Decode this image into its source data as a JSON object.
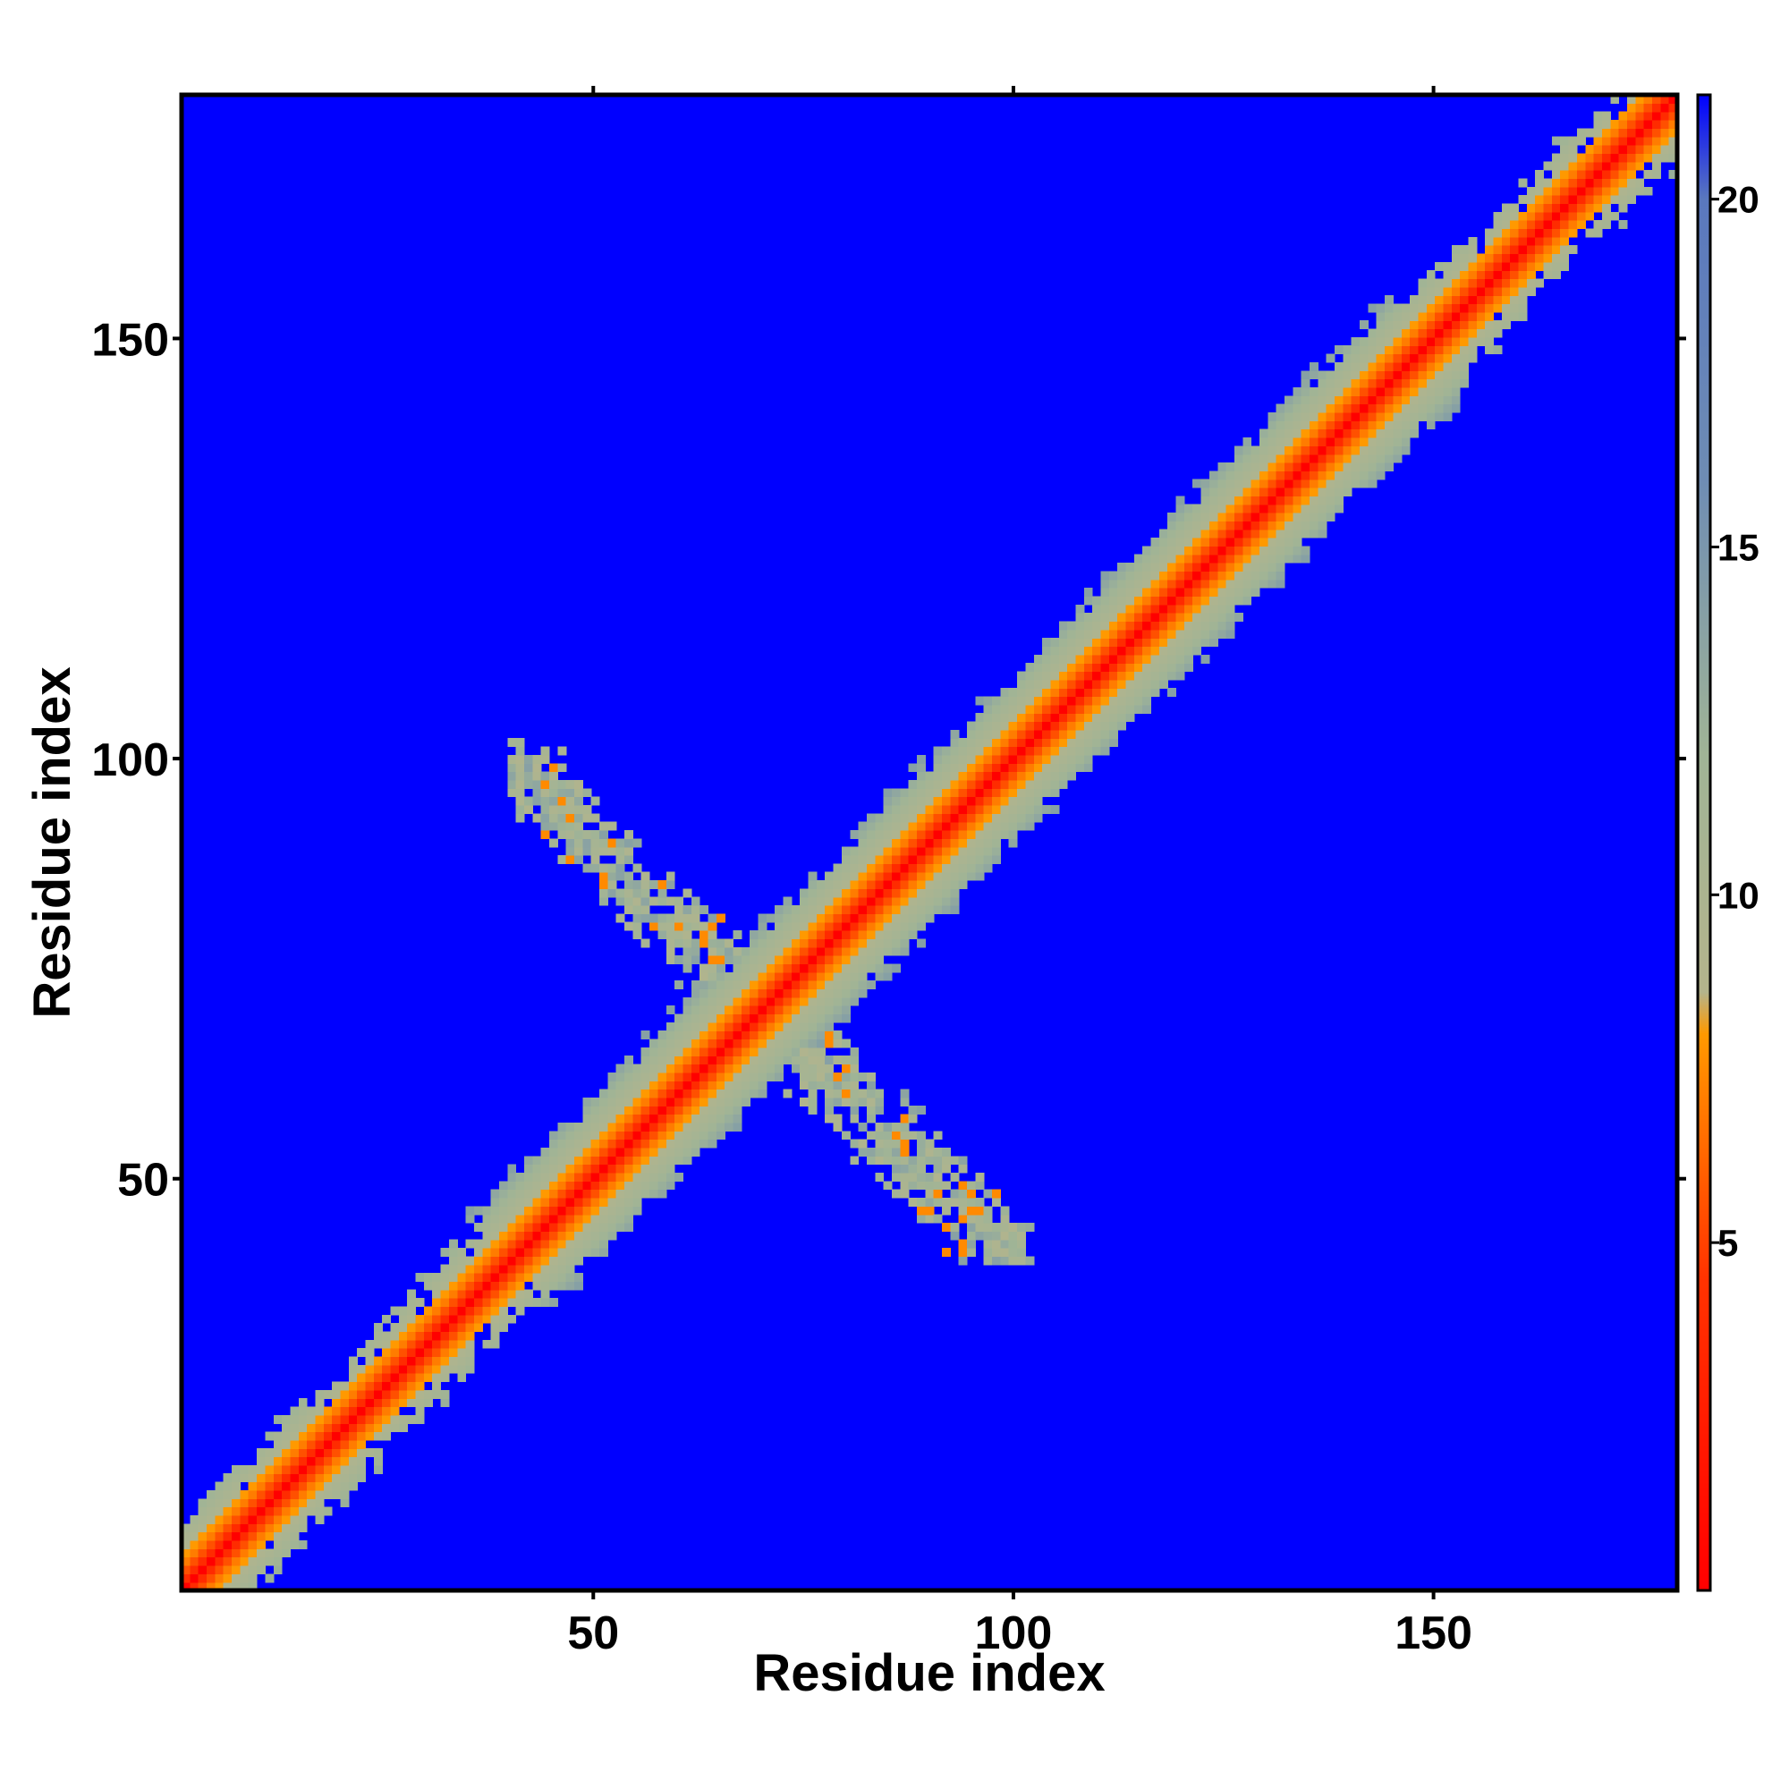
{
  "chart_data": {
    "type": "heatmap",
    "title": "",
    "xlabel": "Residue index",
    "ylabel": "Residue index",
    "xlim": [
      1,
      179
    ],
    "ylim": [
      1,
      179
    ],
    "n_residues": 179,
    "x_ticks": [
      50,
      100,
      150
    ],
    "y_ticks": [
      50,
      100,
      150
    ],
    "colorbar": {
      "range": [
        0,
        21.5
      ],
      "ticks": [
        5,
        10,
        15,
        20
      ],
      "stops": [
        {
          "value": 0,
          "color": "#ff0000"
        },
        {
          "value": 4.5,
          "color": "#ff3300"
        },
        {
          "value": 8.0,
          "color": "#ff9900"
        },
        {
          "value": 8.6,
          "color": "#b4b48c"
        },
        {
          "value": 12.0,
          "color": "#a0b496"
        },
        {
          "value": 16.0,
          "color": "#6e8cb4"
        },
        {
          "value": 20.0,
          "color": "#5a78be"
        },
        {
          "value": 21.5,
          "color": "#0000ff"
        }
      ]
    },
    "background_color": "#0000ff",
    "description_values": {
      "diagonal_band": {
        "center_value": 3.8,
        "band_halfwidth_residues": 10,
        "max_value_in_band": 15
      },
      "cross_contact": {
        "from": [
          40,
          100
        ],
        "to": [
          102,
          40
        ],
        "typical_value": 11
      }
    }
  }
}
